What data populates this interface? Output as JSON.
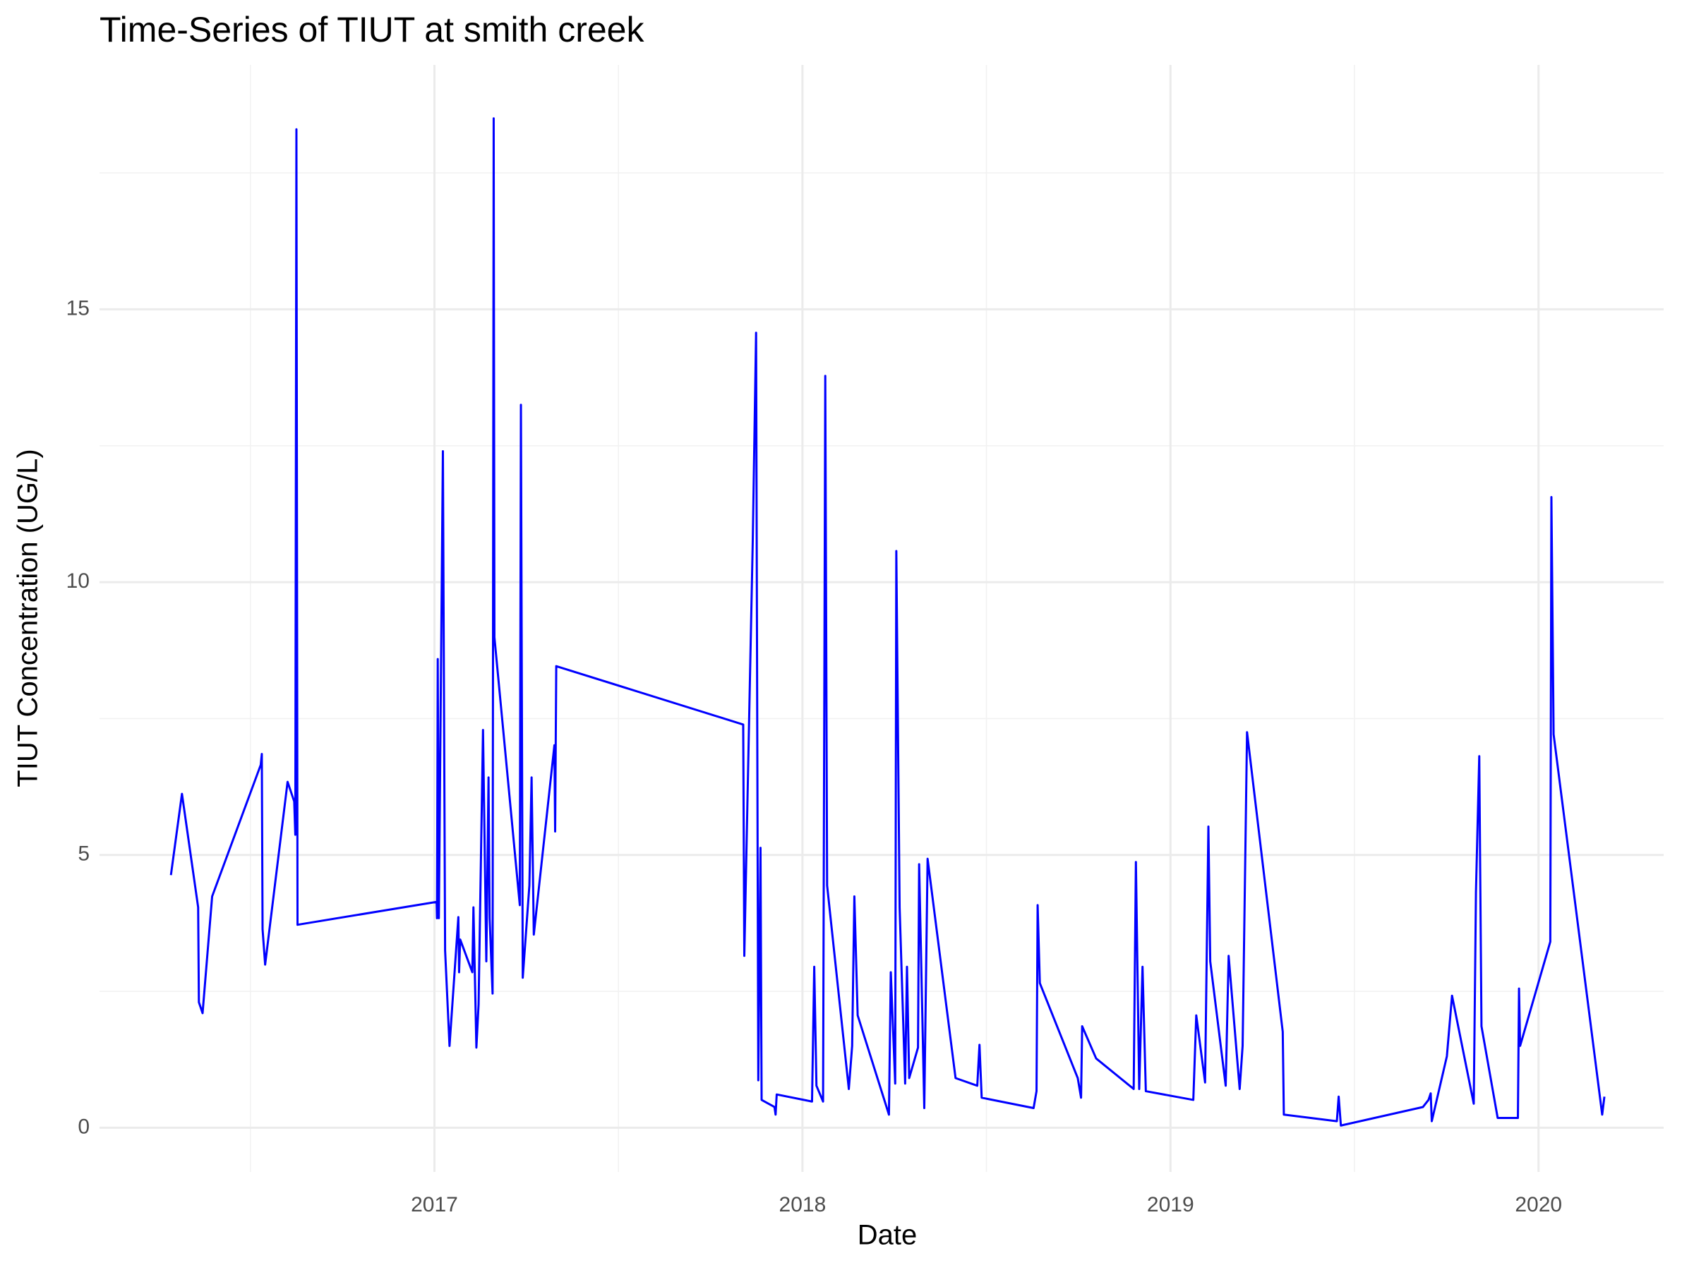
{
  "chart_data": {
    "type": "line",
    "title": "Time-Series of TIUT at smith creek",
    "x_label": "Date",
    "y_label": "TIUT Concentration (UG/L)",
    "color": "#0000ff",
    "grid": true,
    "xlim": [
      2016.09,
      2020.34
    ],
    "xticks": [
      2017,
      2018,
      2019,
      2020
    ],
    "x_minor_ticks": [
      2016.5,
      2017.5,
      2018.5,
      2019.5
    ],
    "ylim": [
      -0.81,
      19.48
    ],
    "yticks": [
      0,
      5,
      10,
      15
    ],
    "y_minor_ticks": [
      2.5,
      7.5,
      12.5,
      17.5
    ],
    "x": [
      2016.284,
      2016.314,
      2016.358,
      2016.36,
      2016.37,
      2016.396,
      2016.528,
      2016.531,
      2016.533,
      2016.54,
      2016.601,
      2016.619,
      2016.622,
      2016.625,
      2016.628,
      2017.006,
      2017.007,
      2017.009,
      2017.012,
      2017.023,
      2017.029,
      2017.041,
      2017.065,
      2017.067,
      2017.07,
      2017.103,
      2017.106,
      2017.114,
      2017.12,
      2017.132,
      2017.141,
      2017.147,
      2017.15,
      2017.158,
      2017.161,
      2017.163,
      2017.232,
      2017.235,
      2017.24,
      2017.258,
      2017.264,
      2017.27,
      2017.326,
      2017.328,
      2017.331,
      2017.839,
      2017.842,
      2017.865,
      2017.874,
      2017.88,
      2017.886,
      2017.889,
      2017.924,
      2017.927,
      2017.93,
      2018.026,
      2018.032,
      2018.038,
      2018.056,
      2018.062,
      2018.067,
      2018.126,
      2018.135,
      2018.141,
      2018.15,
      2018.235,
      2018.24,
      2018.252,
      2018.255,
      2018.264,
      2018.279,
      2018.284,
      2018.29,
      2018.314,
      2018.317,
      2018.331,
      2018.34,
      2018.416,
      2018.475,
      2018.481,
      2018.487,
      2018.628,
      2018.636,
      2018.639,
      2018.645,
      2018.748,
      2018.757,
      2018.76,
      2018.798,
      2018.9,
      2018.906,
      2018.915,
      2018.924,
      2018.933,
      2019.062,
      2019.07,
      2019.094,
      2019.103,
      2019.108,
      2019.15,
      2019.158,
      2019.188,
      2019.196,
      2019.208,
      2019.305,
      2019.308,
      2019.452,
      2019.457,
      2019.463,
      2019.686,
      2019.701,
      2019.707,
      2019.71,
      2019.751,
      2019.765,
      2019.824,
      2019.83,
      2019.839,
      2019.845,
      2019.889,
      2019.944,
      2019.947,
      2019.95,
      2020.032,
      2020.035,
      2020.041,
      2020.173,
      2020.179
    ],
    "values": [
      4.63,
      6.12,
      4.04,
      2.3,
      2.1,
      4.24,
      6.65,
      6.85,
      3.64,
      2.99,
      6.34,
      5.98,
      5.37,
      18.3,
      3.72,
      4.14,
      3.84,
      8.59,
      3.84,
      12.4,
      3.25,
      1.5,
      3.86,
      2.85,
      3.45,
      2.85,
      4.04,
      1.47,
      2.26,
      7.29,
      3.05,
      6.42,
      3.84,
      2.46,
      18.5,
      8.99,
      4.08,
      13.25,
      2.75,
      4.44,
      6.42,
      3.54,
      7.01,
      5.43,
      8.46,
      7.39,
      3.15,
      10.77,
      14.57,
      0.87,
      5.13,
      0.51,
      0.38,
      0.24,
      0.61,
      0.48,
      2.95,
      0.77,
      0.48,
      13.78,
      4.44,
      0.71,
      1.5,
      4.24,
      2.06,
      0.24,
      2.85,
      0.81,
      10.57,
      4.04,
      0.81,
      2.95,
      0.91,
      1.47,
      4.83,
      0.36,
      4.93,
      0.91,
      0.77,
      1.52,
      0.55,
      0.36,
      0.67,
      4.08,
      2.65,
      0.91,
      0.55,
      1.86,
      1.27,
      0.71,
      4.87,
      0.71,
      2.95,
      0.67,
      0.51,
      2.06,
      0.83,
      5.52,
      3.05,
      0.77,
      3.15,
      0.71,
      1.5,
      7.25,
      1.76,
      0.24,
      0.12,
      0.57,
      0.04,
      0.38,
      0.51,
      0.63,
      0.12,
      1.31,
      2.42,
      0.44,
      4.32,
      6.81,
      1.86,
      0.18,
      0.18,
      2.55,
      1.5,
      3.41,
      11.56,
      7.21,
      0.24,
      0.57
    ]
  }
}
